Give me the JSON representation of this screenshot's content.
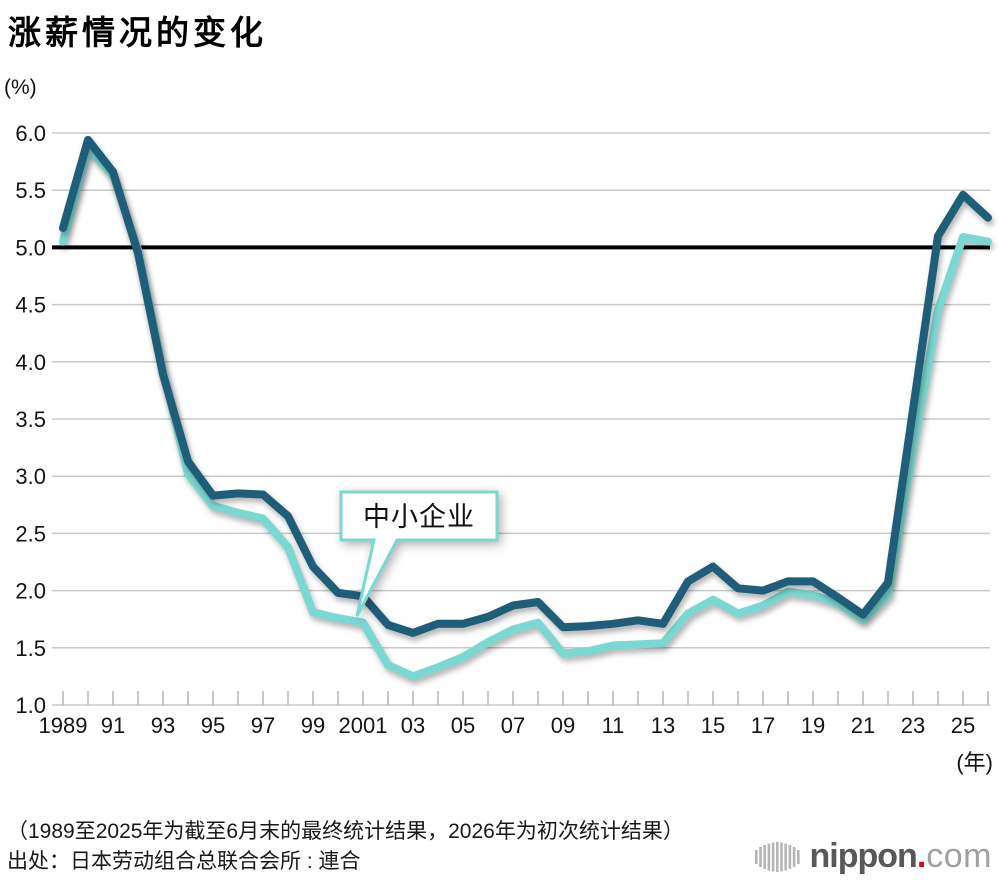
{
  "title": "涨薪情况的变化",
  "y_axis": {
    "unit_label": "(%)",
    "ticks": [
      {
        "label": "6.0",
        "value": 6.0
      },
      {
        "label": "5.5",
        "value": 5.5
      },
      {
        "label": "5.0",
        "value": 5.0
      },
      {
        "label": "4.5",
        "value": 4.5
      },
      {
        "label": "4.0",
        "value": 4.0
      },
      {
        "label": "3.5",
        "value": 3.5
      },
      {
        "label": "3.0",
        "value": 3.0
      },
      {
        "label": "2.5",
        "value": 2.5
      },
      {
        "label": "2.0",
        "value": 2.0
      },
      {
        "label": "1.5",
        "value": 1.5
      },
      {
        "label": "1.0",
        "value": 1.0
      }
    ]
  },
  "x_axis": {
    "unit_label": "(年)",
    "labels": [
      {
        "year": 1989,
        "label": "1989"
      },
      {
        "year": 1991,
        "label": "91"
      },
      {
        "year": 1993,
        "label": "93"
      },
      {
        "year": 1995,
        "label": "95"
      },
      {
        "year": 1997,
        "label": "97"
      },
      {
        "year": 1999,
        "label": "99"
      },
      {
        "year": 2001,
        "label": "2001"
      },
      {
        "year": 2003,
        "label": "03"
      },
      {
        "year": 2005,
        "label": "05"
      },
      {
        "year": 2007,
        "label": "07"
      },
      {
        "year": 2009,
        "label": "09"
      },
      {
        "year": 2011,
        "label": "11"
      },
      {
        "year": 2013,
        "label": "13"
      },
      {
        "year": 2015,
        "label": "15"
      },
      {
        "year": 2017,
        "label": "17"
      },
      {
        "year": 2019,
        "label": "19"
      },
      {
        "year": 2021,
        "label": "21"
      },
      {
        "year": 2023,
        "label": "23"
      },
      {
        "year": 2025,
        "label": "25"
      }
    ]
  },
  "callout": {
    "label": "中小企业"
  },
  "footnote": "（1989至2025年为截至6月末的最终统计结果，2026年为初次统计结果）",
  "source": "出处：日本劳动组合总联合会所 : 連合",
  "logo": {
    "name": "nippon",
    "dot": ".",
    "domain": "com"
  },
  "colors": {
    "overall_line": "#1e5e78",
    "sme_line": "#7bd8d1",
    "reference_line": "#000000",
    "grid": "#c9c9c9",
    "tick": "#b3b3b3",
    "logo_gray": "#595757",
    "logo_light_gray": "#9fa0a0",
    "logo_red": "#e60012"
  },
  "chart_data": {
    "type": "line",
    "x": [
      1989,
      1990,
      1991,
      1992,
      1993,
      1994,
      1995,
      1996,
      1997,
      1998,
      1999,
      2000,
      2001,
      2002,
      2003,
      2004,
      2005,
      2006,
      2007,
      2008,
      2009,
      2010,
      2011,
      2012,
      2013,
      2014,
      2015,
      2016,
      2017,
      2018,
      2019,
      2020,
      2021,
      2022,
      2023,
      2024,
      2025,
      2026
    ],
    "series": [
      {
        "id": "series-dark",
        "label": "",
        "color": "#1e5e78",
        "values": [
          5.17,
          5.94,
          5.66,
          4.95,
          3.89,
          3.13,
          2.83,
          2.85,
          2.84,
          2.65,
          2.21,
          1.98,
          1.95,
          1.7,
          1.63,
          1.71,
          1.71,
          1.77,
          1.87,
          1.9,
          1.68,
          1.69,
          1.71,
          1.74,
          1.71,
          2.08,
          2.21,
          2.02,
          2.0,
          2.08,
          2.08,
          1.94,
          1.79,
          2.07,
          3.58,
          5.1,
          5.46,
          5.26
        ]
      },
      {
        "id": "series-light",
        "label": "中小企业",
        "color": "#7bd8d1",
        "values": [
          5.05,
          5.87,
          5.63,
          4.98,
          3.92,
          3.02,
          2.74,
          2.68,
          2.63,
          2.38,
          1.81,
          1.76,
          1.72,
          1.35,
          1.25,
          1.33,
          1.42,
          1.55,
          1.66,
          1.72,
          1.45,
          1.47,
          1.52,
          1.53,
          1.54,
          1.8,
          1.92,
          1.8,
          1.87,
          1.99,
          1.96,
          1.89,
          1.74,
          1.96,
          3.23,
          4.45,
          5.09,
          5.05
        ]
      }
    ],
    "ylim": [
      1.0,
      6.0
    ],
    "y_unit": "%",
    "reference_line_y": 5.0,
    "grid": true,
    "legend_position": "callout-on-sme-line"
  }
}
